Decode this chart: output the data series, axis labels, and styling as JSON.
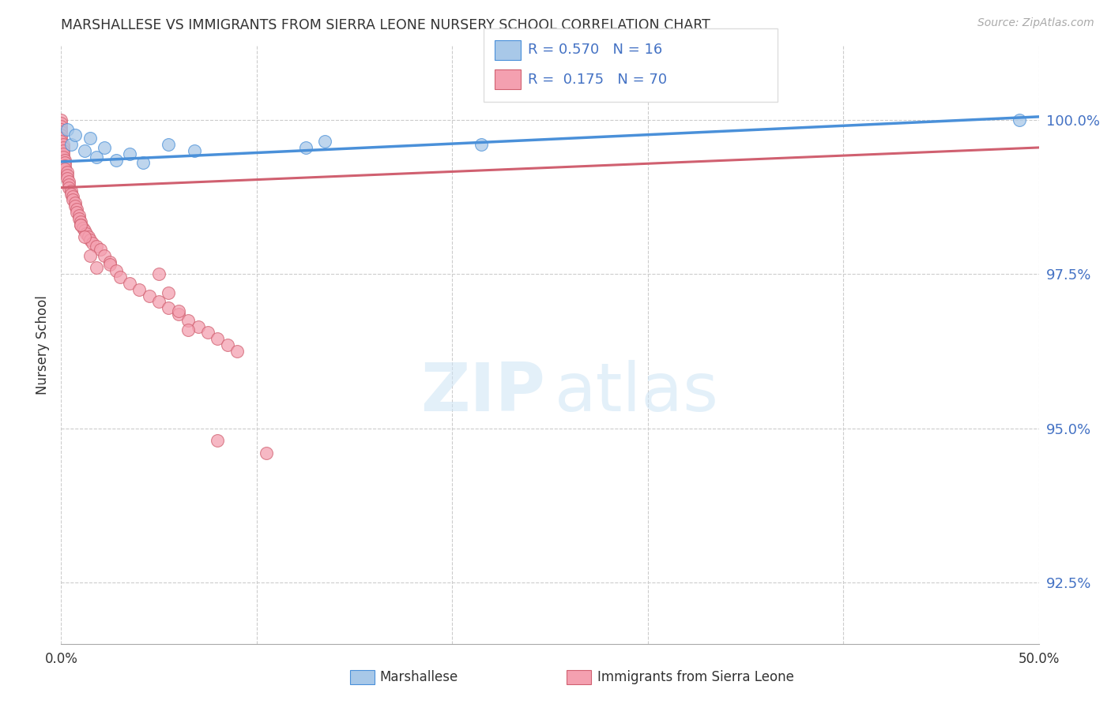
{
  "title": "MARSHALLESE VS IMMIGRANTS FROM SIERRA LEONE NURSERY SCHOOL CORRELATION CHART",
  "source": "Source: ZipAtlas.com",
  "ylabel": "Nursery School",
  "yticks": [
    92.5,
    95.0,
    97.5,
    100.0
  ],
  "xticks": [
    0.0,
    0.1,
    0.2,
    0.3,
    0.4,
    0.5
  ],
  "legend_label1": "Marshallese",
  "legend_label2": "Immigrants from Sierra Leone",
  "R1": 0.57,
  "N1": 16,
  "R2": 0.175,
  "N2": 70,
  "color_blue_fill": "#a8c8e8",
  "color_blue_edge": "#4a90d9",
  "color_pink_fill": "#f4a0b0",
  "color_pink_edge": "#d06070",
  "color_blue_line": "#4a90d9",
  "color_pink_line": "#d06070",
  "blue_x": [
    0.003,
    0.005,
    0.007,
    0.012,
    0.015,
    0.018,
    0.022,
    0.028,
    0.035,
    0.042,
    0.055,
    0.068,
    0.125,
    0.135,
    0.215,
    0.49
  ],
  "blue_y": [
    99.85,
    99.6,
    99.75,
    99.5,
    99.7,
    99.4,
    99.55,
    99.35,
    99.45,
    99.3,
    99.6,
    99.5,
    99.55,
    99.65,
    99.6,
    100.0
  ],
  "pink_x": [
    0.0,
    0.0,
    0.0,
    0.0,
    0.0,
    0.0,
    0.0,
    0.0,
    0.001,
    0.001,
    0.001,
    0.001,
    0.001,
    0.002,
    0.002,
    0.002,
    0.002,
    0.003,
    0.003,
    0.003,
    0.004,
    0.004,
    0.004,
    0.005,
    0.005,
    0.006,
    0.006,
    0.007,
    0.007,
    0.008,
    0.008,
    0.009,
    0.009,
    0.01,
    0.01,
    0.011,
    0.012,
    0.013,
    0.014,
    0.015,
    0.016,
    0.018,
    0.02,
    0.022,
    0.025,
    0.025,
    0.028,
    0.03,
    0.035,
    0.04,
    0.045,
    0.05,
    0.055,
    0.06,
    0.065,
    0.07,
    0.075,
    0.08,
    0.085,
    0.09,
    0.01,
    0.012,
    0.015,
    0.018,
    0.05,
    0.055,
    0.06,
    0.065,
    0.08,
    0.105
  ],
  "pink_y": [
    100.0,
    99.95,
    99.9,
    99.85,
    99.8,
    99.75,
    99.7,
    99.65,
    99.6,
    99.55,
    99.5,
    99.45,
    99.4,
    99.35,
    99.3,
    99.25,
    99.2,
    99.15,
    99.1,
    99.05,
    99.0,
    98.95,
    98.9,
    98.85,
    98.8,
    98.75,
    98.7,
    98.65,
    98.6,
    98.55,
    98.5,
    98.45,
    98.4,
    98.35,
    98.3,
    98.25,
    98.2,
    98.15,
    98.1,
    98.05,
    98.0,
    97.95,
    97.9,
    97.8,
    97.7,
    97.65,
    97.55,
    97.45,
    97.35,
    97.25,
    97.15,
    97.05,
    96.95,
    96.85,
    96.75,
    96.65,
    96.55,
    96.45,
    96.35,
    96.25,
    98.3,
    98.1,
    97.8,
    97.6,
    97.5,
    97.2,
    96.9,
    96.6,
    94.8,
    94.6
  ],
  "xlim": [
    0.0,
    0.5
  ],
  "ylim": [
    91.5,
    101.2
  ],
  "blue_line_x0": 0.0,
  "blue_line_y0": 99.32,
  "blue_line_x1": 0.5,
  "blue_line_y1": 100.05,
  "pink_line_x0": 0.0,
  "pink_line_y0": 98.9,
  "pink_line_x1": 0.5,
  "pink_line_y1": 99.55
}
